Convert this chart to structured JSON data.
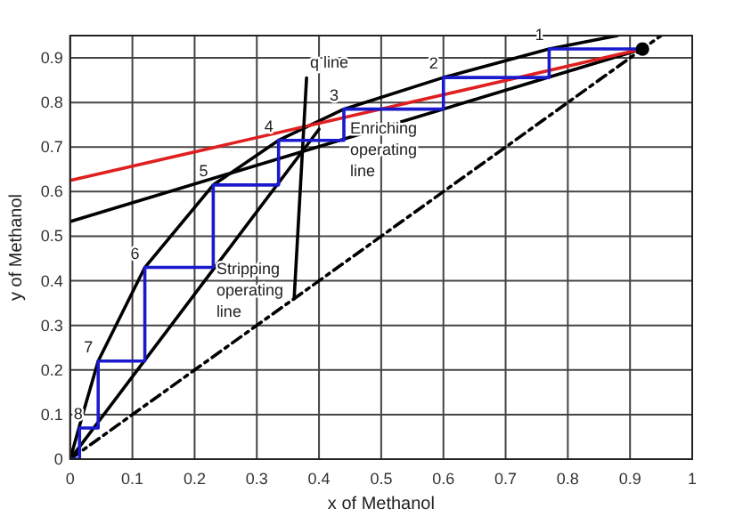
{
  "chart_data": {
    "type": "line",
    "xlabel": "x of Methanol",
    "ylabel": "y of Methanol",
    "xlim": [
      0,
      1
    ],
    "ylim": [
      0,
      0.95
    ],
    "xticks": [
      0,
      0.1,
      0.2,
      0.3,
      0.4,
      0.5,
      0.6,
      0.7,
      0.8,
      0.9,
      1
    ],
    "yticks": [
      0,
      0.1,
      0.2,
      0.3,
      0.4,
      0.5,
      0.6,
      0.7,
      0.8,
      0.9
    ],
    "grid": true,
    "series": [
      {
        "color": "#000000",
        "line_style": "solid",
        "x": [
          0,
          0.02,
          0.045,
          0.12,
          0.23,
          0.335,
          0.44,
          0.6,
          0.77,
          0.88
        ],
        "values": [
          0,
          0.1,
          0.22,
          0.43,
          0.615,
          0.715,
          0.785,
          0.856,
          0.92,
          0.95
        ]
      },
      {
        "color": "#000000",
        "line_style": "dashdot",
        "x": [
          0,
          0.95
        ],
        "values": [
          0,
          0.95
        ]
      },
      {
        "color": "#000000",
        "line_style": "solid",
        "x": [
          0,
          0.92
        ],
        "values": [
          0.533,
          0.92
        ]
      },
      {
        "color": "#e02020",
        "line_style": "solid",
        "x": [
          0,
          0.92
        ],
        "values": [
          0.625,
          0.92
        ]
      },
      {
        "color": "#000000",
        "line_style": "solid",
        "x": [
          0,
          0.4
        ],
        "values": [
          0,
          0.74
        ]
      },
      {
        "name": "q line",
        "color": "#000000",
        "line_style": "solid",
        "x": [
          0.36,
          0.38
        ],
        "values": [
          0.36,
          0.855
        ]
      },
      {
        "color": "#1a1acc",
        "line_style": "solid",
        "x": [
          0.92,
          0.77,
          0.77,
          0.6,
          0.6,
          0.44,
          0.44,
          0.335,
          0.335,
          0.23,
          0.23,
          0.12,
          0.12,
          0.045,
          0.045,
          0.015,
          0.015,
          0
        ],
        "values": [
          0.92,
          0.92,
          0.856,
          0.856,
          0.785,
          0.785,
          0.715,
          0.715,
          0.615,
          0.615,
          0.43,
          0.43,
          0.22,
          0.22,
          0.07,
          0.07,
          0,
          0
        ]
      },
      {
        "type": "scatter",
        "color": "#000000",
        "marker": "circle",
        "x": [
          0.92
        ],
        "values": [
          0.92
        ]
      }
    ],
    "annotations": [
      "1",
      "2",
      "3",
      "4",
      "5",
      "6",
      "7",
      "8",
      {
        "text": "Enriching operating line",
        "x": 0.45,
        "y": 0.73
      },
      {
        "text": "Stripping operating line",
        "x": 0.235,
        "y": 0.415
      }
    ]
  }
}
